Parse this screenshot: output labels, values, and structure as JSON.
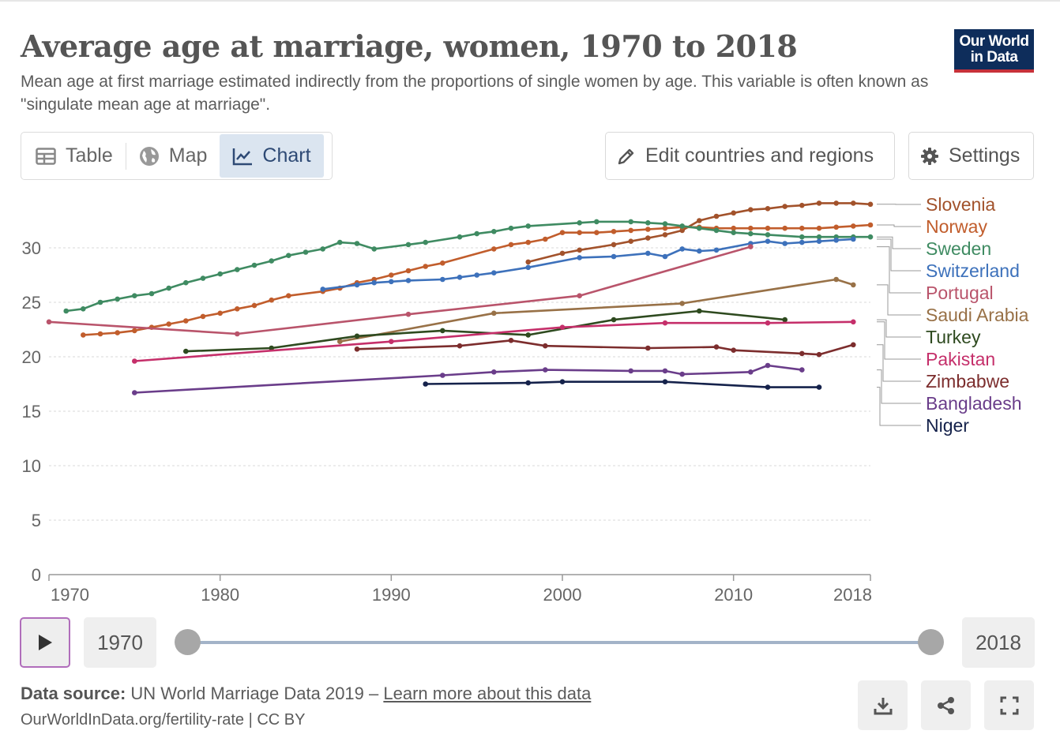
{
  "header": {
    "title": "Average age at marriage, women, 1970 to 2018",
    "subtitle": "Mean age at first marriage estimated indirectly from the proportions of single women by age. This variable is often known as \"singulate mean age at marriage\".",
    "logo_line1": "Our World",
    "logo_line2": "in Data",
    "brand_color": "#0e2d5b",
    "brand_accent": "#c7313a"
  },
  "tabs": [
    {
      "label": "Table",
      "icon": "table-icon"
    },
    {
      "label": "Map",
      "icon": "globe-icon"
    },
    {
      "label": "Chart",
      "icon": "line-chart-icon",
      "active": true
    }
  ],
  "actions": {
    "edit_label": "Edit countries and regions",
    "settings_label": "Settings"
  },
  "timeline": {
    "start_year": "1970",
    "end_year": "2018"
  },
  "footer": {
    "source_label": "Data source:",
    "source_text": "UN World Marriage Data 2019 –",
    "learn_more": "Learn more about this data",
    "url_text": "OurWorldInData.org/fertility-rate | CC BY"
  },
  "chart_data": {
    "type": "line",
    "title": "Average age at marriage, women, 1970 to 2018",
    "xlabel": "",
    "ylabel": "",
    "xlim": [
      1970,
      2018
    ],
    "ylim": [
      0,
      35
    ],
    "xticks": [
      "1970",
      "1980",
      "1990",
      "2000",
      "2010",
      "2018"
    ],
    "yticks": [
      "0",
      "5",
      "10",
      "15",
      "20",
      "25",
      "30"
    ],
    "grid": true,
    "legend": "right",
    "series": [
      {
        "name": "Slovenia",
        "color": "#a2522b",
        "points": [
          [
            1998,
            28.7
          ],
          [
            2000,
            29.5
          ],
          [
            2001,
            29.8
          ],
          [
            2003,
            30.3
          ],
          [
            2004,
            30.6
          ],
          [
            2005,
            30.9
          ],
          [
            2006,
            31.2
          ],
          [
            2007,
            31.6
          ],
          [
            2008,
            32.5
          ],
          [
            2009,
            32.9
          ],
          [
            2010,
            33.2
          ],
          [
            2011,
            33.5
          ],
          [
            2012,
            33.6
          ],
          [
            2013,
            33.8
          ],
          [
            2014,
            33.9
          ],
          [
            2015,
            34.1
          ],
          [
            2016,
            34.1
          ],
          [
            2017,
            34.1
          ],
          [
            2018,
            34.0
          ]
        ]
      },
      {
        "name": "Norway",
        "color": "#c15d2c",
        "points": [
          [
            1972,
            22.0
          ],
          [
            1973,
            22.1
          ],
          [
            1974,
            22.2
          ],
          [
            1975,
            22.4
          ],
          [
            1976,
            22.7
          ],
          [
            1977,
            23.0
          ],
          [
            1978,
            23.3
          ],
          [
            1979,
            23.7
          ],
          [
            1980,
            24.0
          ],
          [
            1981,
            24.4
          ],
          [
            1982,
            24.7
          ],
          [
            1983,
            25.2
          ],
          [
            1984,
            25.6
          ],
          [
            1986,
            26.0
          ],
          [
            1987,
            26.3
          ],
          [
            1988,
            26.8
          ],
          [
            1989,
            27.1
          ],
          [
            1990,
            27.5
          ],
          [
            1991,
            27.9
          ],
          [
            1992,
            28.3
          ],
          [
            1993,
            28.6
          ],
          [
            1996,
            29.9
          ],
          [
            1997,
            30.3
          ],
          [
            1998,
            30.5
          ],
          [
            1999,
            30.8
          ],
          [
            2000,
            31.4
          ],
          [
            2001,
            31.4
          ],
          [
            2002,
            31.4
          ],
          [
            2003,
            31.5
          ],
          [
            2004,
            31.6
          ],
          [
            2005,
            31.7
          ],
          [
            2006,
            31.8
          ],
          [
            2007,
            31.9
          ],
          [
            2008,
            31.9
          ],
          [
            2009,
            31.8
          ],
          [
            2010,
            31.8
          ],
          [
            2011,
            31.8
          ],
          [
            2012,
            31.8
          ],
          [
            2013,
            31.8
          ],
          [
            2014,
            31.8
          ],
          [
            2015,
            31.8
          ],
          [
            2016,
            31.9
          ],
          [
            2017,
            32.0
          ],
          [
            2018,
            32.1
          ]
        ]
      },
      {
        "name": "Sweden",
        "color": "#3f8b62",
        "points": [
          [
            1971,
            24.2
          ],
          [
            1972,
            24.4
          ],
          [
            1973,
            25.0
          ],
          [
            1974,
            25.3
          ],
          [
            1975,
            25.6
          ],
          [
            1976,
            25.8
          ],
          [
            1977,
            26.3
          ],
          [
            1978,
            26.8
          ],
          [
            1979,
            27.2
          ],
          [
            1980,
            27.6
          ],
          [
            1981,
            28.0
          ],
          [
            1982,
            28.4
          ],
          [
            1983,
            28.8
          ],
          [
            1984,
            29.3
          ],
          [
            1985,
            29.6
          ],
          [
            1986,
            29.9
          ],
          [
            1987,
            30.5
          ],
          [
            1988,
            30.4
          ],
          [
            1989,
            29.9
          ],
          [
            1991,
            30.3
          ],
          [
            1992,
            30.5
          ],
          [
            1994,
            31.0
          ],
          [
            1995,
            31.3
          ],
          [
            1996,
            31.5
          ],
          [
            1997,
            31.8
          ],
          [
            1998,
            32.0
          ],
          [
            2001,
            32.3
          ],
          [
            2002,
            32.4
          ],
          [
            2004,
            32.4
          ],
          [
            2005,
            32.3
          ],
          [
            2006,
            32.2
          ],
          [
            2007,
            32.0
          ],
          [
            2008,
            31.8
          ],
          [
            2009,
            31.6
          ],
          [
            2010,
            31.4
          ],
          [
            2011,
            31.3
          ],
          [
            2012,
            31.2
          ],
          [
            2014,
            31.0
          ],
          [
            2015,
            31.0
          ],
          [
            2016,
            31.0
          ],
          [
            2017,
            31.0
          ],
          [
            2018,
            31.0
          ]
        ]
      },
      {
        "name": "Switzerland",
        "color": "#3d71bb",
        "points": [
          [
            1986,
            26.2
          ],
          [
            1988,
            26.6
          ],
          [
            1989,
            26.8
          ],
          [
            1990,
            26.9
          ],
          [
            1991,
            27.0
          ],
          [
            1993,
            27.1
          ],
          [
            1994,
            27.3
          ],
          [
            1995,
            27.5
          ],
          [
            1996,
            27.7
          ],
          [
            1998,
            28.2
          ],
          [
            2001,
            29.1
          ],
          [
            2003,
            29.2
          ],
          [
            2005,
            29.5
          ],
          [
            2006,
            29.2
          ],
          [
            2007,
            29.9
          ],
          [
            2008,
            29.7
          ],
          [
            2009,
            29.8
          ],
          [
            2011,
            30.4
          ],
          [
            2012,
            30.6
          ],
          [
            2013,
            30.4
          ],
          [
            2014,
            30.5
          ],
          [
            2015,
            30.6
          ],
          [
            2016,
            30.7
          ],
          [
            2017,
            30.8
          ]
        ]
      },
      {
        "name": "Portugal",
        "color": "#b9546b",
        "points": [
          [
            1970,
            23.2
          ],
          [
            1981,
            22.1
          ],
          [
            1991,
            23.9
          ],
          [
            2001,
            25.6
          ],
          [
            2011,
            30.1
          ]
        ]
      },
      {
        "name": "Saudi Arabia",
        "color": "#987147",
        "points": [
          [
            1987,
            21.4
          ],
          [
            1996,
            24.0
          ],
          [
            2007,
            24.9
          ],
          [
            2016,
            27.1
          ],
          [
            2017,
            26.6
          ]
        ]
      },
      {
        "name": "Turkey",
        "color": "#2e4a1f",
        "points": [
          [
            1978,
            20.5
          ],
          [
            1983,
            20.8
          ],
          [
            1988,
            21.9
          ],
          [
            1993,
            22.4
          ],
          [
            1998,
            22.0
          ],
          [
            2003,
            23.4
          ],
          [
            2008,
            24.2
          ],
          [
            2013,
            23.4
          ]
        ]
      },
      {
        "name": "Pakistan",
        "color": "#c52f6a",
        "points": [
          [
            1975,
            19.6
          ],
          [
            1990,
            21.4
          ],
          [
            2000,
            22.7
          ],
          [
            2006,
            23.1
          ],
          [
            2012,
            23.1
          ],
          [
            2017,
            23.2
          ]
        ]
      },
      {
        "name": "Zimbabwe",
        "color": "#7c2d2d",
        "points": [
          [
            1988,
            20.7
          ],
          [
            1994,
            21.0
          ],
          [
            1997,
            21.5
          ],
          [
            1999,
            21.0
          ],
          [
            2005,
            20.8
          ],
          [
            2009,
            20.9
          ],
          [
            2010,
            20.6
          ],
          [
            2014,
            20.3
          ],
          [
            2015,
            20.2
          ],
          [
            2017,
            21.1
          ]
        ]
      },
      {
        "name": "Bangladesh",
        "color": "#6a3d8a",
        "points": [
          [
            1975,
            16.7
          ],
          [
            1993,
            18.3
          ],
          [
            1996,
            18.6
          ],
          [
            1999,
            18.8
          ],
          [
            2004,
            18.7
          ],
          [
            2006,
            18.7
          ],
          [
            2007,
            18.4
          ],
          [
            2011,
            18.6
          ],
          [
            2012,
            19.2
          ],
          [
            2014,
            18.8
          ]
        ]
      },
      {
        "name": "Niger",
        "color": "#15224b",
        "points": [
          [
            1992,
            17.5
          ],
          [
            1998,
            17.6
          ],
          [
            2000,
            17.7
          ],
          [
            2006,
            17.7
          ],
          [
            2012,
            17.2
          ],
          [
            2015,
            17.2
          ]
        ]
      }
    ]
  }
}
